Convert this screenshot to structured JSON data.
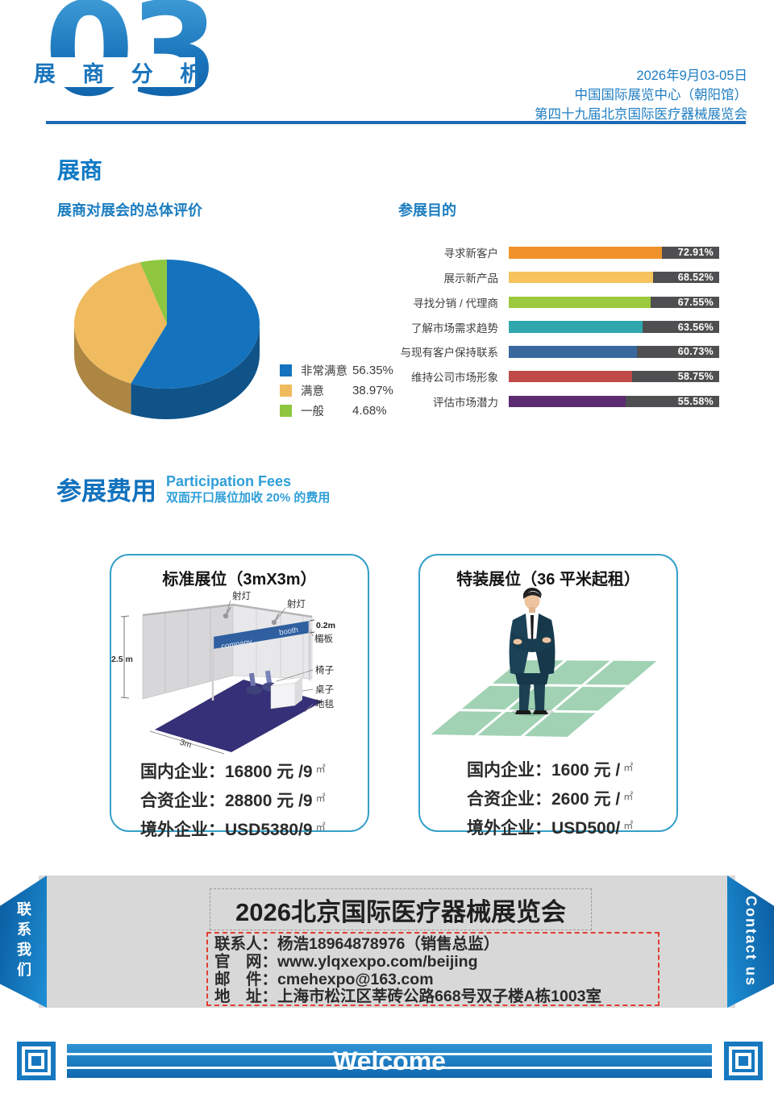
{
  "header": {
    "number": "03",
    "title": "展 商 分 析",
    "date": "2026年9月03-05日",
    "venue": "中国国际展览中心（朝阳馆）",
    "event": "第四十九届北京国际医疗器械展览会"
  },
  "exhibitor": {
    "section_title": "展商",
    "pie_subtitle": "展商对展会的总体评价",
    "bar_subtitle": "参展目的"
  },
  "chart_data": [
    {
      "type": "pie",
      "title": "展商对展会的总体评价",
      "labels": [
        "非常满意",
        "满意",
        "一般"
      ],
      "values": [
        56.35,
        38.97,
        4.68
      ],
      "display": [
        "56.35%",
        "38.97%",
        "4.68%"
      ],
      "colors": [
        "#1573bd",
        "#f0ba5e",
        "#8ec640"
      ],
      "style": "3d-pie",
      "legend_position": "right"
    },
    {
      "type": "bar",
      "title": "参展目的",
      "orientation": "horizontal",
      "categories": [
        "寻求新客户",
        "展示新产品",
        "寻找分销 / 代理商",
        "了解市场需求趋势",
        "与现有客户保持联系",
        "维持公司市场形象",
        "评估市场潜力"
      ],
      "values": [
        72.91,
        68.52,
        67.55,
        63.56,
        60.73,
        58.75,
        55.58
      ],
      "value_labels": [
        "72.91%",
        "68.52%",
        "67.55%",
        "63.56%",
        "60.73%",
        "58.75%",
        "55.58%"
      ],
      "bar_colors": [
        "#f0922a",
        "#f6c35f",
        "#9cc93d",
        "#30a7ad",
        "#39689f",
        "#c04a47",
        "#5c2b71"
      ],
      "track_color": "#4f4f51",
      "xlim": [
        0,
        100
      ]
    }
  ],
  "fees": {
    "title": "参展费用",
    "subtitle_en": "Participation Fees",
    "subtitle_cn": "双面开口展位加收 20% 的费用",
    "standard_booth": {
      "title": "标准展位（3mX3m）",
      "diagram": {
        "spotlight1": "射灯",
        "spotlight2": "射灯",
        "fascia_height": "0.2m",
        "fascia": "楣板",
        "chair": "椅子",
        "table": "桌子",
        "carpet": "地毯",
        "wall_height": "2.5 m",
        "wall_width": "3m",
        "fascia_text_left": "company",
        "fascia_text_right": "booth"
      },
      "prices": [
        {
          "label": "国内企业：",
          "value": "16800 元 /9",
          "unit": "㎡"
        },
        {
          "label": "合资企业：",
          "value": "28800 元 /9",
          "unit": "㎡"
        },
        {
          "label": "境外企业：",
          "value": "USD5380/9",
          "unit": "㎡"
        }
      ]
    },
    "custom_booth": {
      "title": "特装展位（36 平米起租）",
      "prices": [
        {
          "label": "国内企业：",
          "value": "1600 元 /",
          "unit": "㎡"
        },
        {
          "label": "合资企业：",
          "value": "2600 元 /",
          "unit": "㎡"
        },
        {
          "label": "境外企业：",
          "value": "USD500/",
          "unit": "㎡"
        }
      ]
    }
  },
  "contact": {
    "left_ribbon": "联系我们",
    "right_ribbon": "Contact us",
    "title": "2026北京国际医疗器械展览会",
    "rows": [
      {
        "label": "联系人：",
        "value": "杨浩18964878976（销售总监）"
      },
      {
        "label": "官　网：",
        "value": "www.ylqxexpo.com/beijing"
      },
      {
        "label": "邮　件：",
        "value": "cmehexpo@163.com"
      },
      {
        "label": "地　址：",
        "value": "上海市松江区莘砖公路668号双子楼A栋1003室"
      }
    ]
  },
  "footer": {
    "welcome": "Welcome"
  }
}
